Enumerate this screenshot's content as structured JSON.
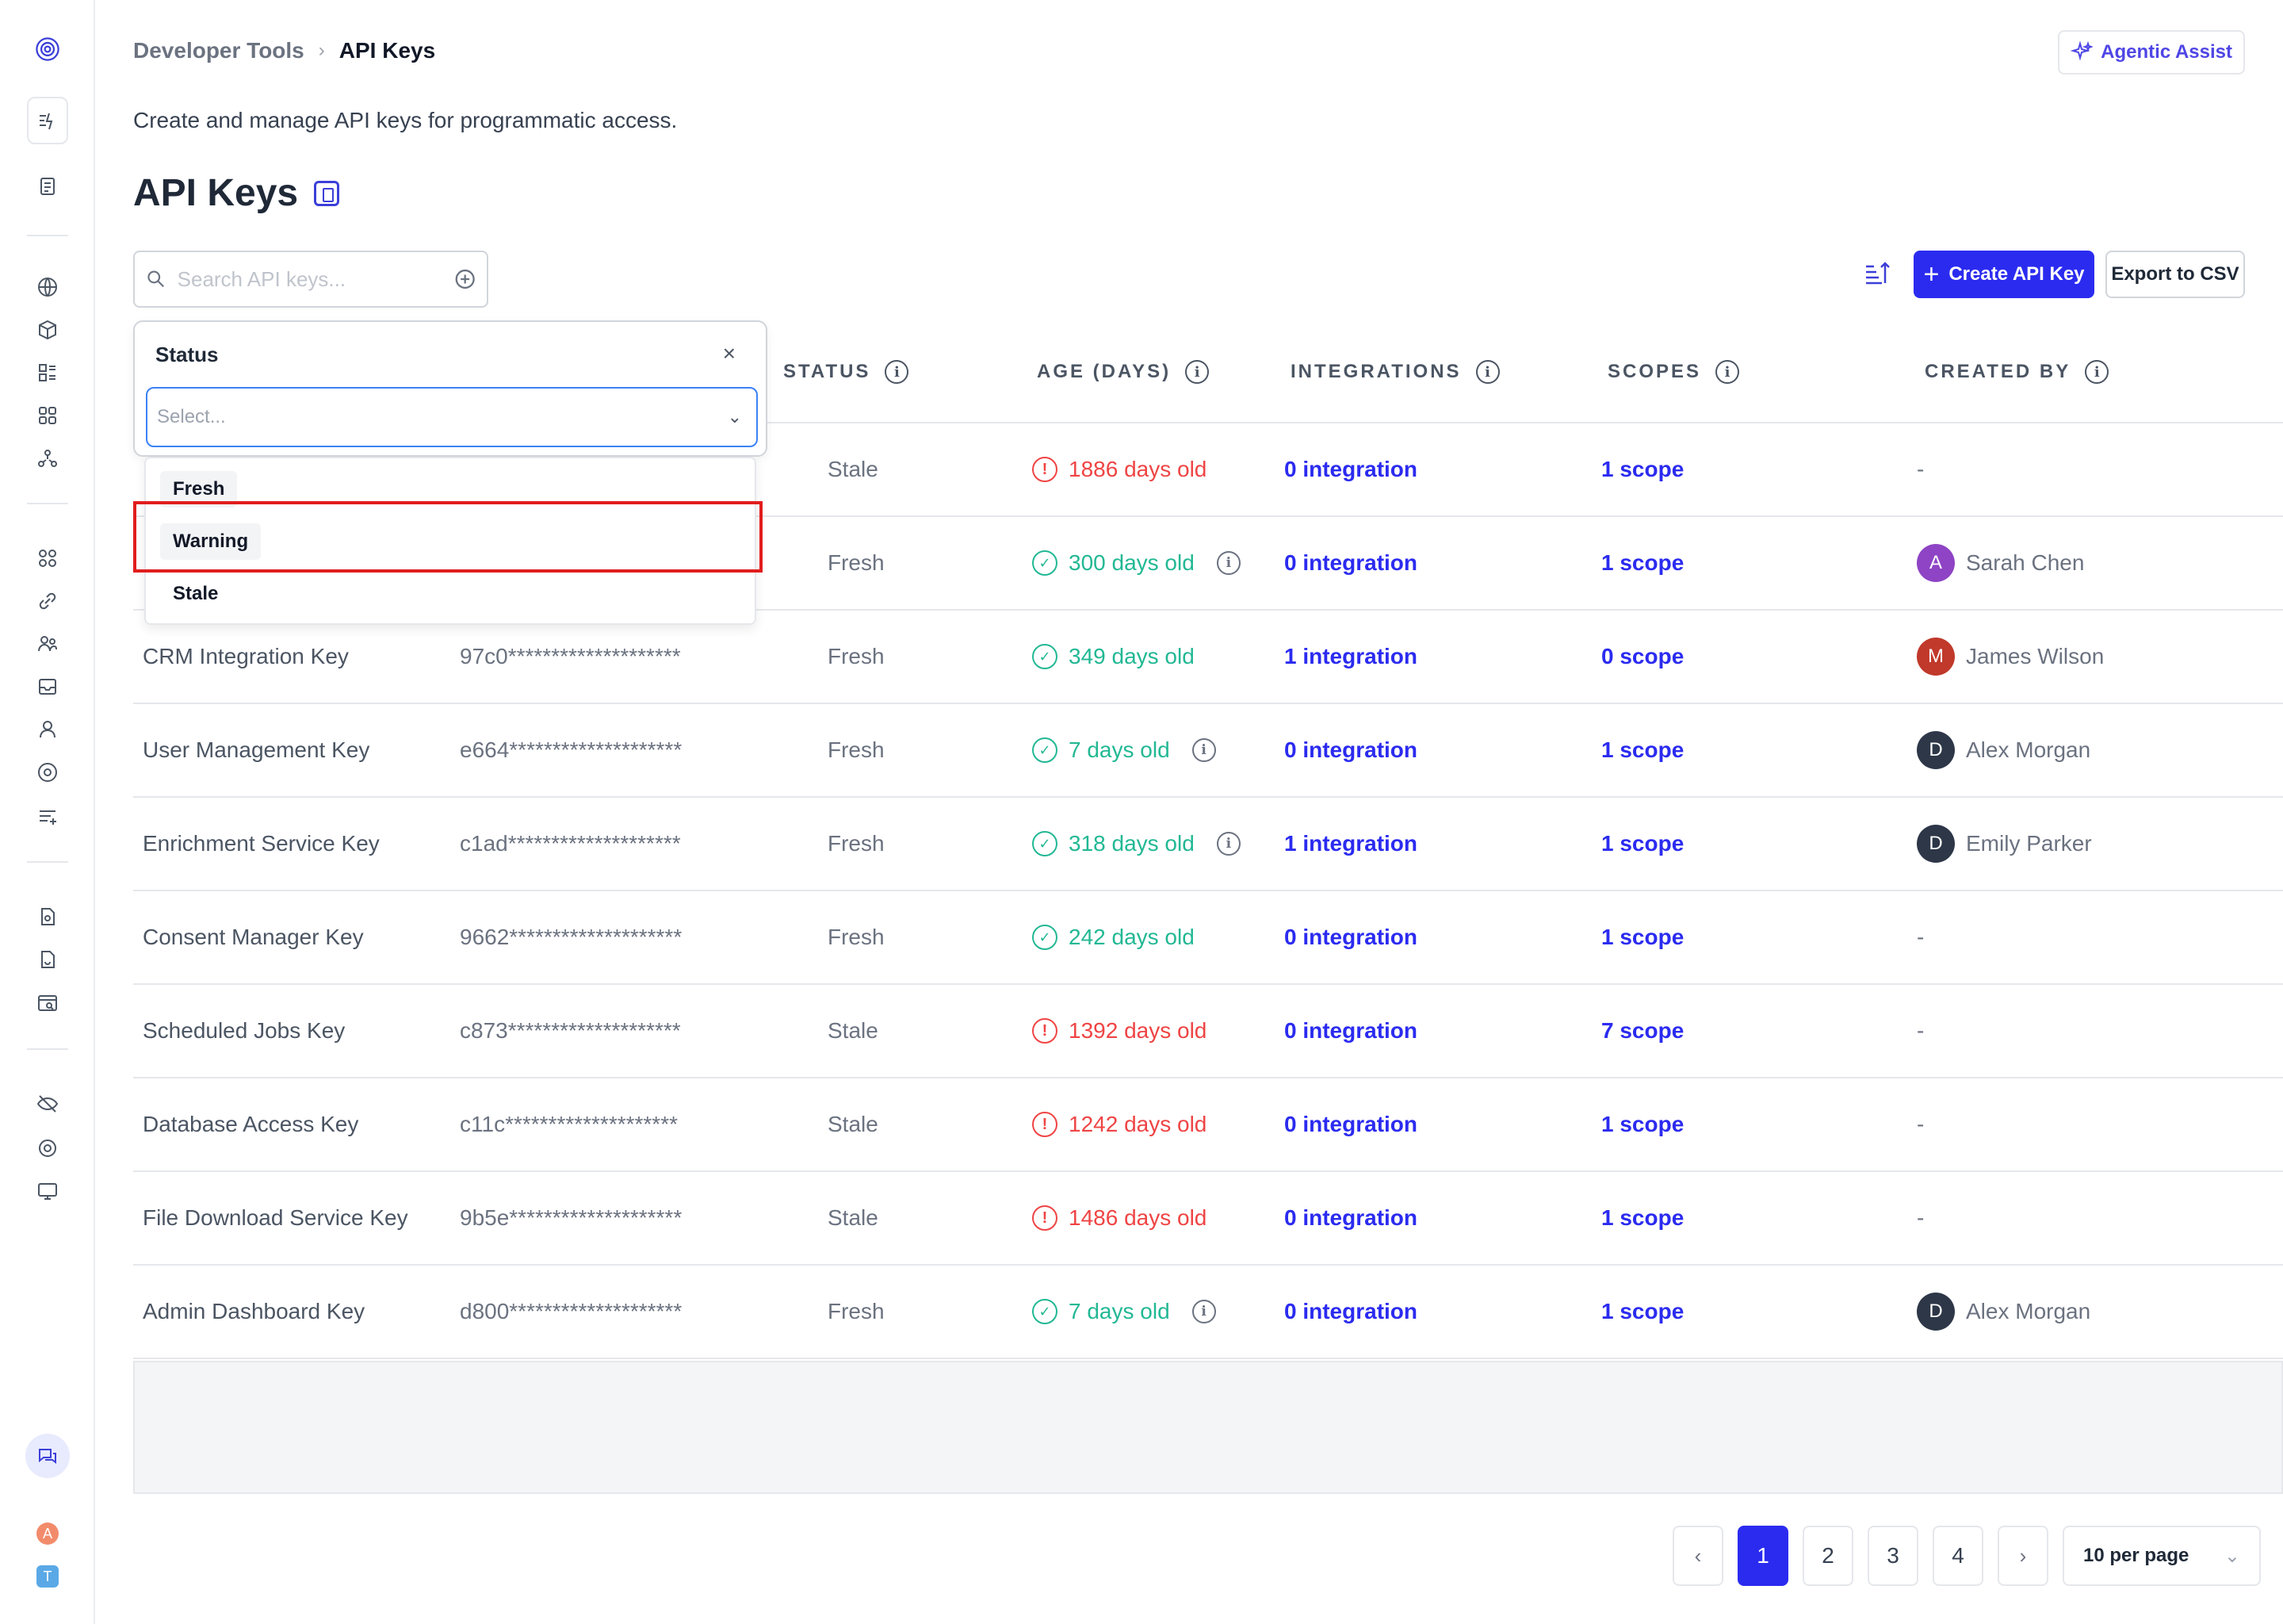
{
  "breadcrumb": {
    "section": "Developer Tools",
    "separator": "›",
    "current": "API Keys"
  },
  "header": {
    "assist_label": "Agentic Assist"
  },
  "page": {
    "subtitle": "Create and manage API keys for programmatic access.",
    "title": "API Keys"
  },
  "toolbar": {
    "search_placeholder": "Search API keys...",
    "create_label": "Create API Key",
    "create_plus": "+",
    "export_label": "Export to CSV"
  },
  "columns": {
    "status": "STATUS",
    "age": "AGE (DAYS)",
    "integrations": "INTEGRATIONS",
    "scopes": "SCOPES",
    "created_by": "CREATED BY",
    "info": "i"
  },
  "rows": [
    {
      "name": "",
      "key": "",
      "status": "Stale",
      "age": "1886 days old",
      "age_type": "stale",
      "age_info": false,
      "integrations": "0 integration",
      "scopes": "1 scope",
      "created_by": "-",
      "avatar": "",
      "avatar_color": ""
    },
    {
      "name": "",
      "key": "",
      "status": "Fresh",
      "age": "300 days old",
      "age_type": "fresh",
      "age_info": true,
      "integrations": "0 integration",
      "scopes": "1 scope",
      "created_by": "Sarah Chen",
      "avatar": "A",
      "avatar_color": "#8e44c4"
    },
    {
      "name": "CRM Integration Key",
      "key": "97c0********************",
      "status": "Fresh",
      "age": "349 days old",
      "age_type": "fresh",
      "age_info": false,
      "integrations": "1 integration",
      "scopes": "0 scope",
      "created_by": "James Wilson",
      "avatar": "M",
      "avatar_color": "#c0392b"
    },
    {
      "name": "User Management Key",
      "key": "e664********************",
      "status": "Fresh",
      "age": "7 days old",
      "age_type": "fresh",
      "age_info": true,
      "integrations": "0 integration",
      "scopes": "1 scope",
      "created_by": "Alex Morgan",
      "avatar": "D",
      "avatar_color": "#2d3748"
    },
    {
      "name": "Enrichment Service Key",
      "key": "c1ad********************",
      "status": "Fresh",
      "age": "318 days old",
      "age_type": "fresh",
      "age_info": true,
      "integrations": "1 integration",
      "scopes": "1 scope",
      "created_by": "Emily Parker",
      "avatar": "D",
      "avatar_color": "#2d3748"
    },
    {
      "name": "Consent Manager Key",
      "key": "9662********************",
      "status": "Fresh",
      "age": "242 days old",
      "age_type": "fresh",
      "age_info": false,
      "integrations": "0 integration",
      "scopes": "1 scope",
      "created_by": "-",
      "avatar": "",
      "avatar_color": ""
    },
    {
      "name": "Scheduled Jobs Key",
      "key": "c873********************",
      "status": "Stale",
      "age": "1392 days old",
      "age_type": "stale",
      "age_info": false,
      "integrations": "0 integration",
      "scopes": "7 scope",
      "created_by": "-",
      "avatar": "",
      "avatar_color": ""
    },
    {
      "name": "Database Access Key",
      "key": "c11c********************",
      "status": "Stale",
      "age": "1242 days old",
      "age_type": "stale",
      "age_info": false,
      "integrations": "0 integration",
      "scopes": "1 scope",
      "created_by": "-",
      "avatar": "",
      "avatar_color": ""
    },
    {
      "name": "File Download Service Key",
      "key": "9b5e********************",
      "status": "Stale",
      "age": "1486 days old",
      "age_type": "stale",
      "age_info": false,
      "integrations": "0 integration",
      "scopes": "1 scope",
      "created_by": "-",
      "avatar": "",
      "avatar_color": ""
    },
    {
      "name": "Admin Dashboard Key",
      "key": "d800********************",
      "status": "Fresh",
      "age": "7 days old",
      "age_type": "fresh",
      "age_info": true,
      "integrations": "0 integration",
      "scopes": "1 scope",
      "created_by": "Alex Morgan",
      "avatar": "D",
      "avatar_color": "#2d3748"
    }
  ],
  "pagination": {
    "prev": "‹",
    "next": "›",
    "pages": [
      "1",
      "2",
      "3",
      "4"
    ],
    "active": "1",
    "per_page": "10 per page",
    "per_page_chevron": "⌄"
  },
  "filter": {
    "title": "Status",
    "close": "×",
    "select_placeholder": "Select...",
    "select_chevron": "⌄",
    "options": [
      "Fresh",
      "Warning",
      "Stale"
    ],
    "highlighted": "Warning"
  },
  "sidebar": {
    "icons": [
      "logo-icon",
      "activity-icon",
      "clipboard-icon",
      "globe-icon",
      "cube-icon",
      "apps-icon",
      "grid-icon",
      "network-icon",
      "modules-icon",
      "link-icon",
      "users-group-icon",
      "inbox-icon",
      "user-icon",
      "compass-icon",
      "list-add-icon",
      "document-icon",
      "file-sync-icon",
      "browser-search-icon",
      "eye-off-icon",
      "settings-icon",
      "monitor-icon",
      "chat-icon"
    ],
    "avatars": [
      {
        "letter": "A",
        "color": "#f28b6b"
      },
      {
        "letter": "T",
        "color": "#5aa9e6"
      }
    ]
  },
  "colors": {
    "primary": "#2b2bf0",
    "stale": "#ef4444",
    "fresh": "#22b894",
    "highlight": "#e11d1d"
  }
}
